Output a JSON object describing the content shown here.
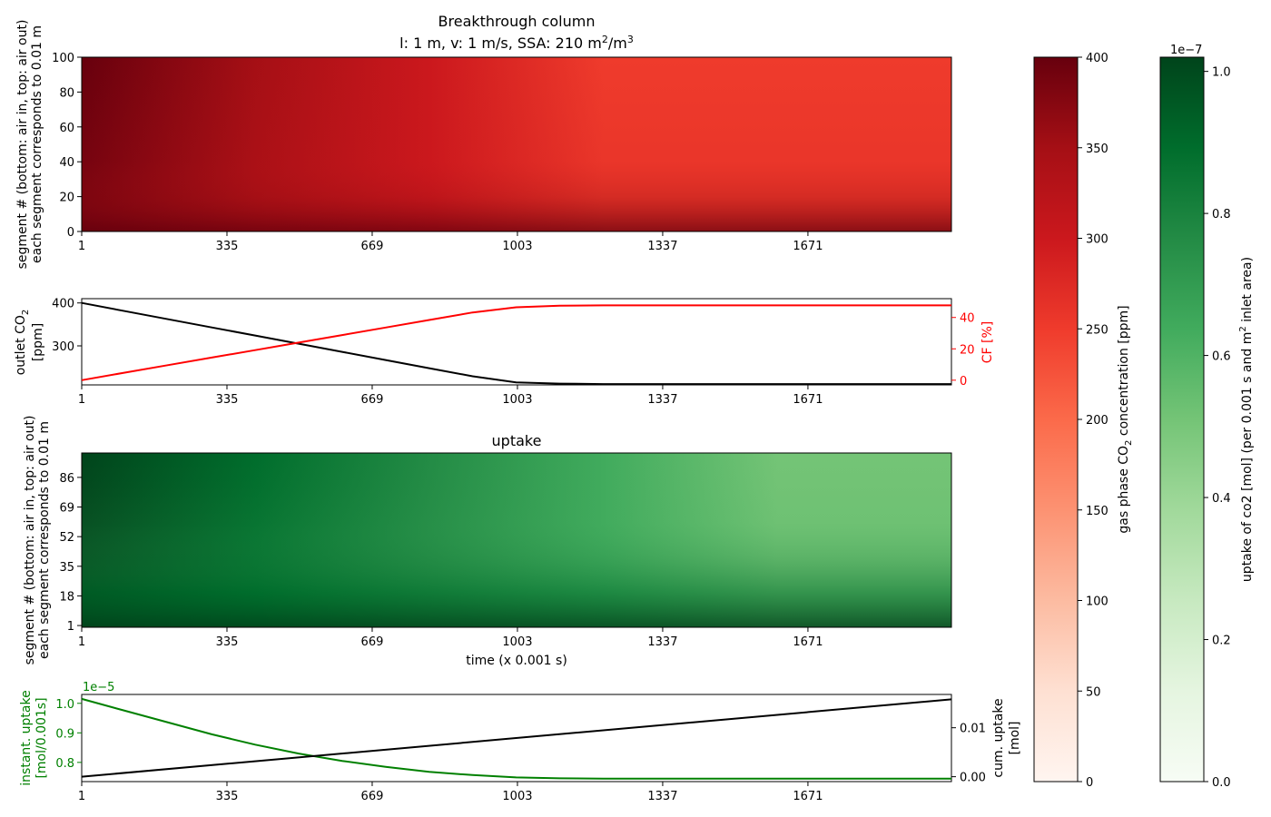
{
  "colors": {
    "gas_line": "#000000",
    "cf_line": "#ff0000",
    "instant_line": "#008000",
    "cum_line": "#000000",
    "reds_colormap": [
      "#fff5f0",
      "#fee0d2",
      "#fcbba1",
      "#fc9272",
      "#fb6a4a",
      "#ef3b2c",
      "#cb181d",
      "#a50f15",
      "#67000d"
    ],
    "greens_colormap": [
      "#f7fcf5",
      "#e5f5e0",
      "#c7e9c0",
      "#a1d99b",
      "#74c476",
      "#41ab5d",
      "#238b45",
      "#006d2c",
      "#00441b"
    ]
  },
  "chart_data": [
    {
      "type": "heatmap",
      "title": "Breakthrough column",
      "subtitle_prefix": "l: 1 m, v: 1 m/s, SSA: 210 m",
      "subtitle_sup1": "2",
      "subtitle_mid": "/m",
      "subtitle_sup2": "3",
      "ylabel_line1": "segment # (bottom: air in, top: air out)",
      "ylabel_line2": "each segment corresponds to 0.01 m",
      "xticks": [
        "1",
        "335",
        "669",
        "1003",
        "1337",
        "1671"
      ],
      "yticks": [
        "0",
        "20",
        "40",
        "60",
        "80",
        "100"
      ],
      "xlim": [
        1,
        2001
      ],
      "ylim": [
        0,
        100
      ],
      "colormap": "Reds",
      "value_range": [
        0,
        400
      ],
      "colorbar": {
        "label_prefix": "gas phase CO",
        "label_sub": "2",
        "label_suffix": " concentration [ppm]",
        "ticks": [
          "0",
          "50",
          "100",
          "150",
          "200",
          "250",
          "300",
          "350",
          "400"
        ],
        "range": [
          0,
          400
        ]
      },
      "grid": false
    },
    {
      "type": "line",
      "xticks": [
        "1",
        "335",
        "669",
        "1003",
        "1337",
        "1671"
      ],
      "xlim": [
        1,
        2001
      ],
      "ylabel_line1_prefix": "outlet CO",
      "ylabel_line1_sub": "2",
      "ylabel_line2": "[ppm]",
      "ylim": [
        209,
        410
      ],
      "yticks": [
        "300",
        "400"
      ],
      "ylabel_right": "CF [%]",
      "ylim_right": [
        -3,
        52
      ],
      "yticks_right": [
        "0",
        "20",
        "40"
      ],
      "series": [
        {
          "axis": "left",
          "x": [
            1,
            100,
            200,
            300,
            400,
            500,
            600,
            700,
            800,
            900,
            1000,
            1100,
            1200,
            1300,
            1500,
            1700,
            1900,
            2001
          ],
          "y": [
            400,
            381,
            362,
            343,
            324,
            305,
            286,
            267,
            248,
            229,
            215,
            212,
            211,
            211,
            211,
            211,
            211,
            211
          ]
        },
        {
          "axis": "right",
          "x": [
            1,
            100,
            200,
            300,
            400,
            500,
            600,
            700,
            800,
            900,
            1000,
            1100,
            1200,
            1300,
            1500,
            1700,
            1900,
            2001
          ],
          "y": [
            0,
            4.8,
            9.6,
            14.4,
            19.2,
            24,
            28.8,
            33.6,
            38.4,
            43.2,
            46.5,
            47.5,
            47.7,
            47.7,
            47.7,
            47.7,
            47.7,
            47.7
          ]
        }
      ],
      "grid": false
    },
    {
      "type": "heatmap",
      "title": "uptake",
      "ylabel_line1": "segment # (bottom: air in, top: air out)",
      "ylabel_line2": "each segment corresponds to 0.01 m",
      "xlabel": "time (x 0.001 s)",
      "xticks": [
        "1",
        "335",
        "669",
        "1003",
        "1337",
        "1671"
      ],
      "yticks": [
        "1",
        "18",
        "35",
        "52",
        "69",
        "86"
      ],
      "xlim": [
        1,
        2001
      ],
      "ylim": [
        0,
        100
      ],
      "colormap": "Greens",
      "value_range": [
        0,
        1.02e-07
      ],
      "colorbar": {
        "label_prefix": "uptake of co2 [mol] (per 0.001 s and m",
        "label_sup": "2",
        "label_suffix": " inlet area)",
        "ticks": [
          "0.0",
          "0.2",
          "0.4",
          "0.6",
          "0.8",
          "1.0"
        ],
        "range": [
          0,
          1.02
        ],
        "offset_text": "1e−7"
      },
      "grid": false
    },
    {
      "type": "line",
      "xticks": [
        "1",
        "335",
        "669",
        "1003",
        "1337",
        "1671"
      ],
      "xlim": [
        1,
        2001
      ],
      "ylabel_line1": "instant. uptake",
      "ylabel_line2": "[mol/0.001s]",
      "offset_text": "1e−5",
      "ylim": [
        0.735,
        1.03
      ],
      "yticks": [
        "0.8",
        "0.9",
        "1.0"
      ],
      "ylabel_right_line1": "cum. uptake",
      "ylabel_right_line2": "[mol]",
      "ylim_right": [
        -0.001,
        0.0168
      ],
      "yticks_right": [
        "0.00",
        "0.01"
      ],
      "series": [
        {
          "axis": "left",
          "x": [
            1,
            100,
            200,
            300,
            400,
            500,
            600,
            700,
            800,
            900,
            1000,
            1100,
            1200,
            1300,
            1500,
            1700,
            1900,
            2001
          ],
          "y": [
            1.015,
            0.975,
            0.935,
            0.895,
            0.86,
            0.83,
            0.805,
            0.785,
            0.768,
            0.757,
            0.749,
            0.746,
            0.745,
            0.745,
            0.745,
            0.745,
            0.745,
            0.745
          ]
        },
        {
          "axis": "right",
          "x": [
            1,
            2001
          ],
          "y": [
            0,
            0.0158
          ]
        }
      ],
      "grid": false
    }
  ]
}
